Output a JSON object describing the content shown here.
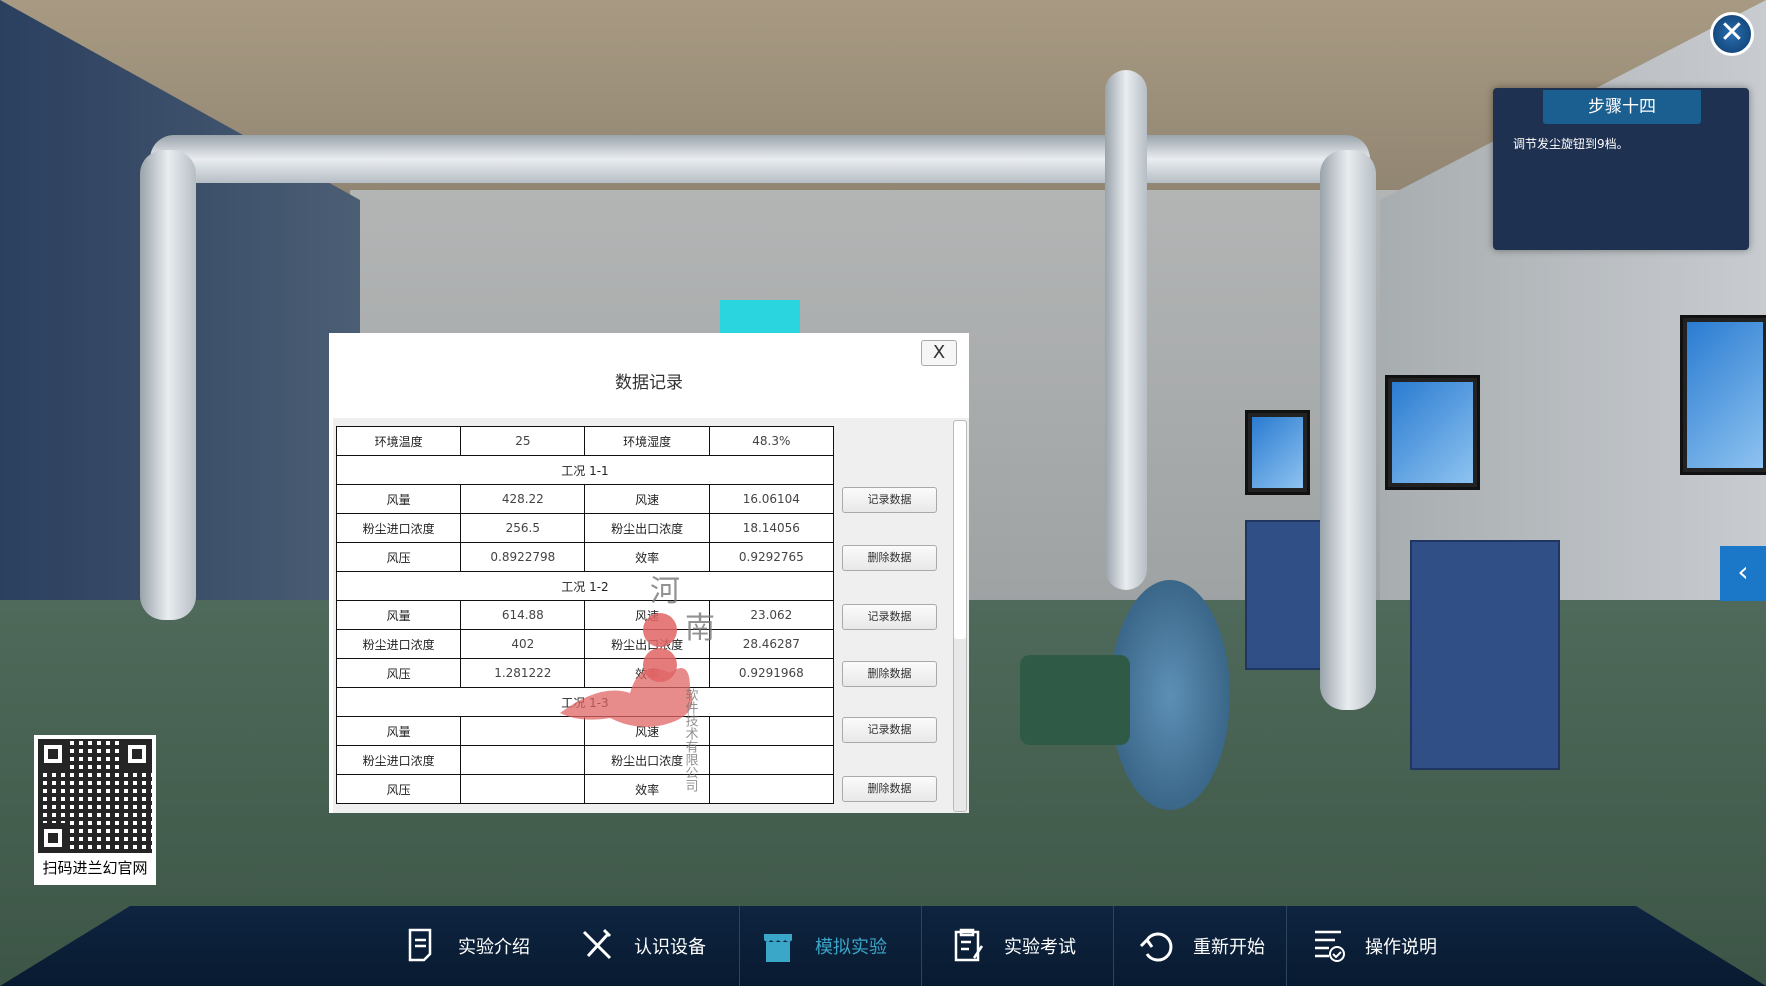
{
  "dialog": {
    "title": "数据记录",
    "close_label": "X",
    "env": {
      "temp_label": "环境温度",
      "temp_value": "25",
      "humidity_label": "环境湿度",
      "humidity_value": "48.3%"
    },
    "conditions": [
      {
        "name": "工况 1-1",
        "air_volume_label": "风量",
        "air_volume": "428.22",
        "air_speed_label": "风速",
        "air_speed": "16.06104",
        "inlet_label": "粉尘进口浓度",
        "inlet": "256.5",
        "outlet_label": "粉尘出口浓度",
        "outlet": "18.14056",
        "pressure_label": "风压",
        "pressure": "0.8922798",
        "efficiency_label": "效率",
        "efficiency": "0.9292765"
      },
      {
        "name": "工况 1-2",
        "air_volume_label": "风量",
        "air_volume": "614.88",
        "air_speed_label": "风速",
        "air_speed": "23.062",
        "inlet_label": "粉尘进口浓度",
        "inlet": "402",
        "outlet_label": "粉尘出口浓度",
        "outlet": "28.46287",
        "pressure_label": "风压",
        "pressure": "1.281222",
        "efficiency_label": "效率",
        "efficiency": "0.9291968"
      },
      {
        "name": "工况 1-3",
        "air_volume_label": "风量",
        "air_volume": "",
        "air_speed_label": "风速",
        "air_speed": "",
        "inlet_label": "粉尘进口浓度",
        "inlet": "",
        "outlet_label": "粉尘出口浓度",
        "outlet": "",
        "pressure_label": "风压",
        "pressure": "",
        "efficiency_label": "效率",
        "efficiency": ""
      }
    ],
    "record_label": "记录数据",
    "delete_label": "删除数据",
    "scroll_position": 0
  },
  "step_panel": {
    "title": "步骤十四",
    "instruction": "调节发尘旋钮到9档。"
  },
  "qr": {
    "caption": "扫码进兰幻官网"
  },
  "watermark": {
    "text": "河南兰幻软件技术有限公司"
  },
  "nav": [
    {
      "label": "实验介绍",
      "icon": "document-icon"
    },
    {
      "label": "认识设备",
      "icon": "tools-icon"
    },
    {
      "label": "模拟实验",
      "icon": "store-icon",
      "active": true
    },
    {
      "label": "实验考试",
      "icon": "clipboard-edit-icon"
    },
    {
      "label": "重新开始",
      "icon": "restart-icon"
    },
    {
      "label": "操作说明",
      "icon": "list-check-icon"
    }
  ],
  "colors": {
    "nav_bg": "#0e2440",
    "nav_active": "#3aa6c8",
    "panel_bg": "#1f3150",
    "panel_header": "#1a5f8f",
    "side_tab": "#1b78c8"
  }
}
